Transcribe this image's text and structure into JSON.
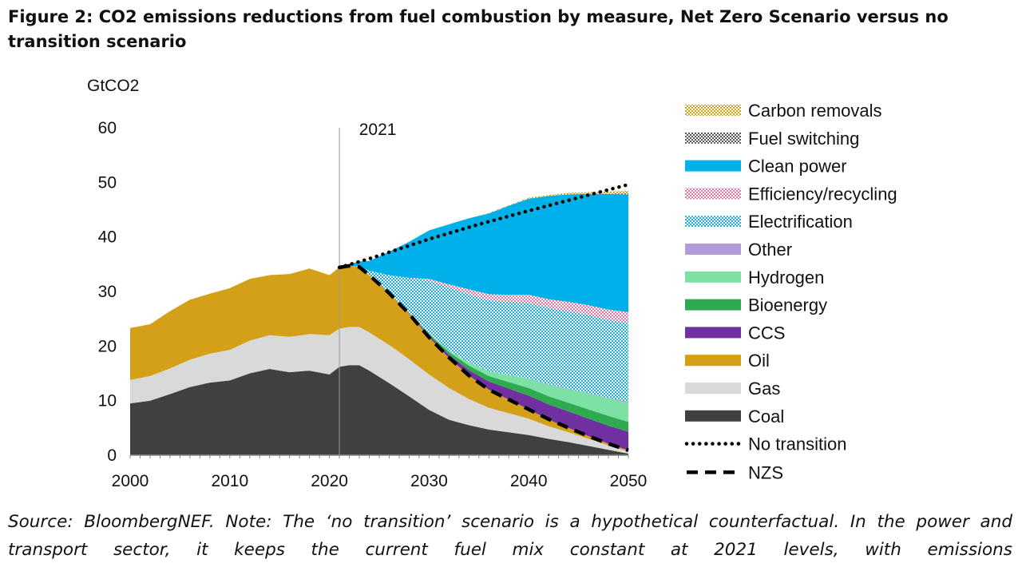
{
  "title": "Figure 2: CO2 emissions reductions from fuel combustion by measure, Net Zero Scenario versus no transition scenario",
  "source_note": "Source: BloombergNEF. Note: The ‘no transition’ scenario is a hypothetical counterfactual. In the power and transport sector, it keeps the current fuel mix constant at 2021 levels, with emissions",
  "colors": {
    "Coal": "#404040",
    "Gas": "#d9d9d9",
    "Oil": "#d4a017",
    "CCS": "#7030a0",
    "Bioenergy": "#2eaa50",
    "Hydrogen": "#7de0a4",
    "Other": "#b19cd9",
    "Electrification": "#1aaee0",
    "Efficiency/recycling": "#e377a8",
    "Clean power": "#00b0e8",
    "Fuel switching": "#555555",
    "Carbon removals": "#c9a818"
  },
  "chart_data": {
    "type": "area",
    "title": "",
    "ylabel": "GtCO2",
    "xlabel": "",
    "xlim": [
      2000,
      2050
    ],
    "ylim": [
      0,
      60
    ],
    "yticks": [
      0,
      10,
      20,
      30,
      40,
      50,
      60
    ],
    "xticks": [
      2000,
      2010,
      2020,
      2030,
      2040,
      2050
    ],
    "annotation": {
      "x": 2021,
      "label": "2021"
    },
    "x": [
      2000,
      2002,
      2004,
      2006,
      2008,
      2010,
      2012,
      2014,
      2016,
      2018,
      2020,
      2021,
      2022,
      2023,
      2024,
      2026,
      2028,
      2030,
      2032,
      2034,
      2036,
      2038,
      2040,
      2042,
      2044,
      2046,
      2048,
      2050
    ],
    "series": [
      {
        "name": "Coal",
        "pattern": "solid",
        "values": [
          9.5,
          10.0,
          11.2,
          12.5,
          13.3,
          13.7,
          15.0,
          15.8,
          15.2,
          15.5,
          14.8,
          16.2,
          16.5,
          16.5,
          15.5,
          13.2,
          10.8,
          8.3,
          6.5,
          5.5,
          4.7,
          4.2,
          3.7,
          3.0,
          2.4,
          1.7,
          1.0,
          0.3
        ]
      },
      {
        "name": "Gas",
        "pattern": "solid",
        "values": [
          4.3,
          4.5,
          4.7,
          5.0,
          5.3,
          5.6,
          6.0,
          6.2,
          6.5,
          6.7,
          7.2,
          7.0,
          7.0,
          7.0,
          7.0,
          7.0,
          6.8,
          6.5,
          5.8,
          4.8,
          4.0,
          3.5,
          3.0,
          2.3,
          1.8,
          1.3,
          0.8,
          0.4
        ]
      },
      {
        "name": "Oil",
        "pattern": "solid",
        "values": [
          9.5,
          9.5,
          10.5,
          11.0,
          11.0,
          11.3,
          11.3,
          11.0,
          11.5,
          12.0,
          11.0,
          11.2,
          11.2,
          11.0,
          10.5,
          9.5,
          8.3,
          6.8,
          5.5,
          4.3,
          3.3,
          2.5,
          1.7,
          1.2,
          0.8,
          0.5,
          0.3,
          0.2
        ]
      },
      {
        "name": "CCS",
        "pattern": "solid",
        "values": [
          0,
          0,
          0,
          0,
          0,
          0,
          0,
          0,
          0,
          0,
          0,
          0,
          0,
          0,
          0,
          0,
          0.1,
          0.3,
          0.6,
          1.0,
          1.5,
          2.0,
          2.5,
          2.8,
          3.0,
          3.2,
          3.3,
          3.4
        ]
      },
      {
        "name": "Bioenergy",
        "pattern": "solid",
        "values": [
          0,
          0,
          0,
          0,
          0,
          0,
          0,
          0,
          0,
          0,
          0,
          0,
          0,
          0,
          0,
          0,
          0.1,
          0.3,
          0.5,
          0.8,
          1.0,
          1.2,
          1.4,
          1.5,
          1.6,
          1.7,
          1.8,
          1.8
        ]
      },
      {
        "name": "Hydrogen",
        "pattern": "solid",
        "values": [
          0,
          0,
          0,
          0,
          0,
          0,
          0,
          0,
          0,
          0,
          0,
          0,
          0,
          0,
          0,
          0,
          0,
          0.1,
          0.3,
          0.6,
          0.9,
          1.3,
          1.7,
          2.1,
          2.5,
          2.9,
          3.2,
          3.5
        ]
      },
      {
        "name": "Other",
        "pattern": "solid",
        "values": [
          0,
          0,
          0,
          0,
          0,
          0,
          0,
          0,
          0,
          0,
          0,
          0,
          0,
          0,
          0,
          0,
          0,
          0,
          0,
          0,
          0,
          0,
          0.1,
          0.1,
          0.1,
          0.1,
          0.1,
          0.2
        ]
      },
      {
        "name": "Electrification",
        "pattern": "checker",
        "values": [
          0,
          0,
          0,
          0,
          0,
          0,
          0,
          0,
          0,
          0,
          0,
          0,
          0,
          0.1,
          0.8,
          3.3,
          6.4,
          9.7,
          11.5,
          12.5,
          13.0,
          13.4,
          13.8,
          14.0,
          14.2,
          14.3,
          14.3,
          14.4
        ]
      },
      {
        "name": "Efficiency/recycling",
        "pattern": "checker",
        "values": [
          0,
          0,
          0,
          0,
          0,
          0,
          0,
          0,
          0,
          0,
          0,
          0,
          0,
          0,
          0,
          0,
          0,
          0.3,
          0.6,
          0.9,
          1.1,
          1.3,
          1.5,
          1.6,
          1.7,
          1.8,
          1.9,
          2.0
        ]
      },
      {
        "name": "Clean power",
        "pattern": "solid",
        "values": [
          0,
          0,
          0,
          0,
          0,
          0,
          0,
          0,
          0,
          0,
          0,
          0,
          0.3,
          0.9,
          1.8,
          4.3,
          6.6,
          8.9,
          11.0,
          13.0,
          14.8,
          16.3,
          17.6,
          18.9,
          19.7,
          20.4,
          21.2,
          21.6
        ]
      },
      {
        "name": "Fuel switching",
        "pattern": "checker",
        "values": [
          0,
          0,
          0,
          0,
          0,
          0,
          0,
          0,
          0,
          0,
          0,
          0,
          0,
          0,
          0,
          0,
          0,
          0,
          0,
          0,
          0,
          0,
          0,
          0,
          0,
          0,
          0,
          0.2
        ]
      },
      {
        "name": "Carbon removals",
        "pattern": "checker",
        "values": [
          0,
          0,
          0,
          0,
          0,
          0,
          0,
          0,
          0,
          0,
          0,
          0,
          0,
          0,
          0,
          0,
          0,
          0,
          0,
          0,
          0.1,
          0.1,
          0.2,
          0.2,
          0.3,
          0.3,
          0.4,
          0.5
        ]
      }
    ],
    "lines": [
      {
        "name": "No transition",
        "style": "dotted",
        "x": [
          2021,
          2024,
          2030,
          2035,
          2040,
          2045,
          2050
        ],
        "values": [
          34.4,
          36.0,
          39.6,
          42.3,
          44.8,
          47.2,
          49.6
        ]
      },
      {
        "name": "NZS",
        "style": "dashed",
        "x": [
          2021,
          2022,
          2023,
          2024,
          2026,
          2028,
          2030,
          2032,
          2034,
          2036,
          2038,
          2040,
          2042,
          2044,
          2046,
          2048,
          2050
        ],
        "values": [
          34.4,
          34.7,
          34.5,
          33.0,
          29.7,
          25.9,
          21.6,
          17.9,
          14.6,
          12.0,
          10.2,
          8.4,
          6.6,
          5.0,
          3.5,
          2.1,
          0.9
        ]
      }
    ],
    "legend": {
      "position": "right",
      "entries": [
        "Carbon removals",
        "Fuel switching",
        "Clean power",
        "Efficiency/recycling",
        "Electrification",
        "Other",
        "Hydrogen",
        "Bioenergy",
        "CCS",
        "Oil",
        "Gas",
        "Coal",
        "No transition",
        "NZS"
      ]
    }
  }
}
